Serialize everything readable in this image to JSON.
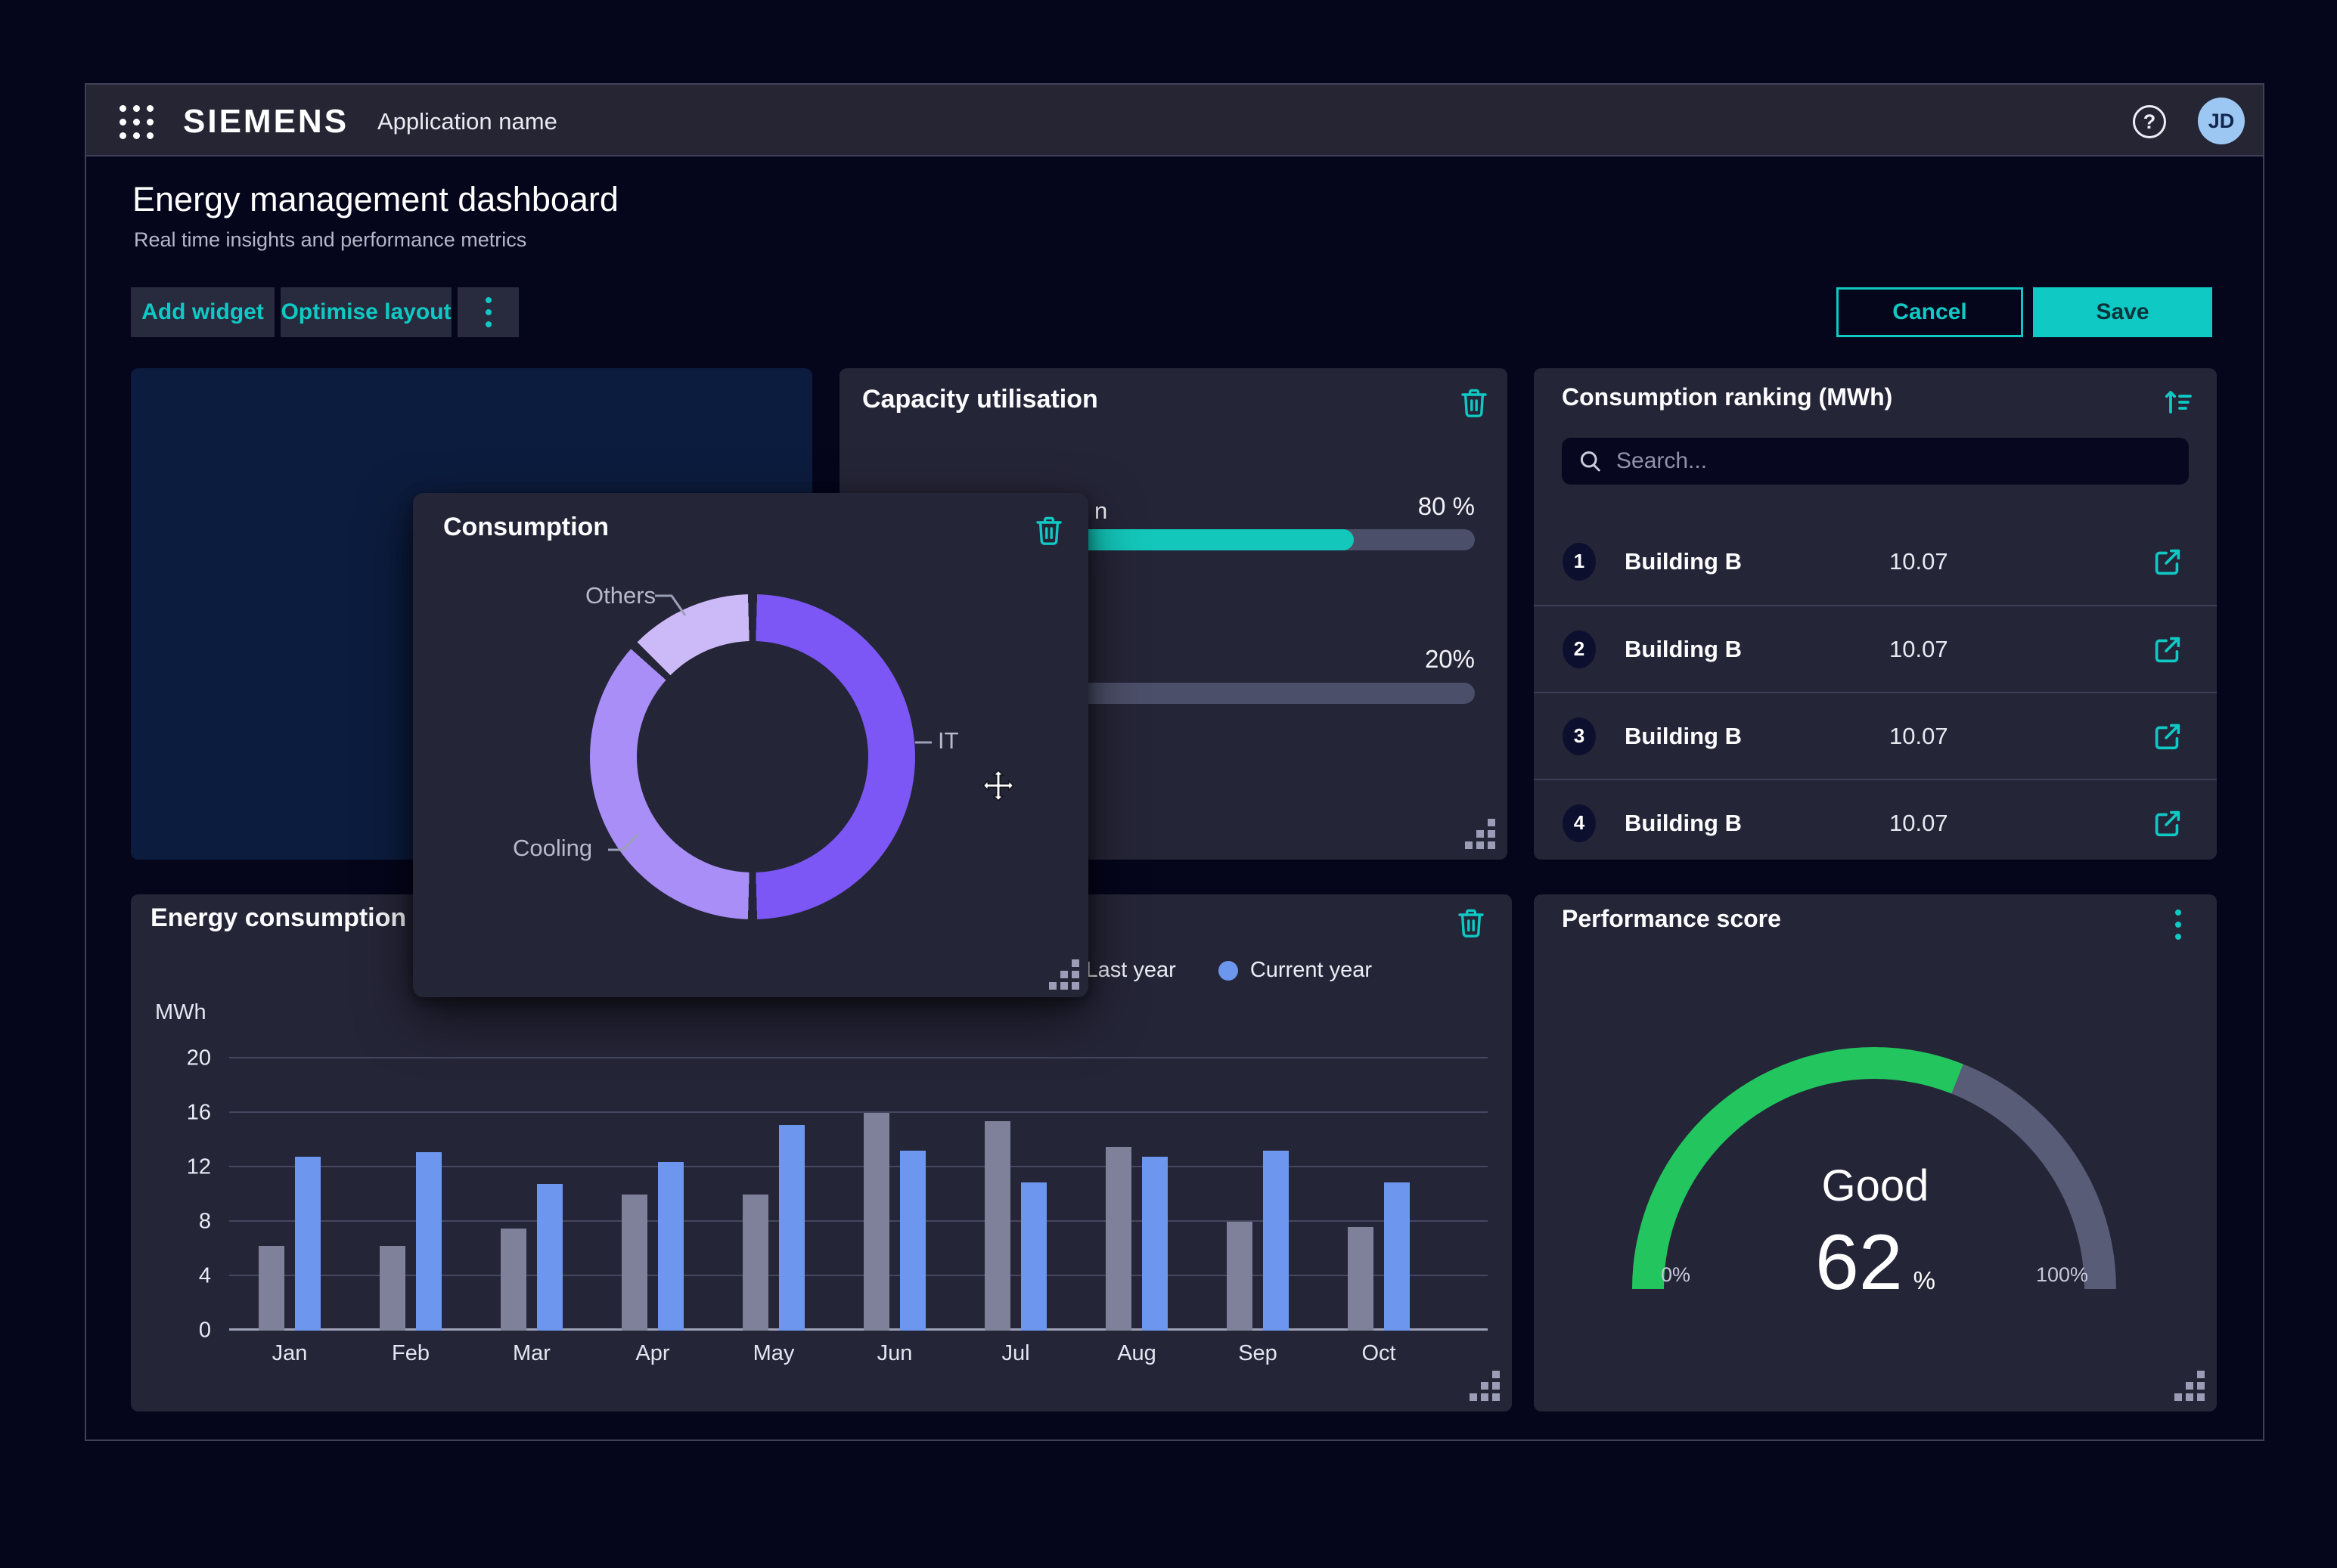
{
  "header": {
    "brand": "SIEMENS",
    "app_name": "Application name",
    "avatar_initials": "JD"
  },
  "page": {
    "title": "Energy management dashboard",
    "subtitle": "Real time insights and performance metrics"
  },
  "toolbar": {
    "add_widget": "Add widget",
    "optimise_layout": "Optimise layout",
    "cancel": "Cancel",
    "save": "Save"
  },
  "colors": {
    "accent": "#0fc9c4",
    "progress_fill": "#13c7ba",
    "progress_track": "#4c4f69",
    "bar_last_year": "#7e8199",
    "bar_current_year": "#6d96ee",
    "gauge_green": "#22c55e",
    "gauge_track": "#585c77",
    "donut_it": "#7c57f5",
    "donut_cooling": "#a88ef6",
    "donut_others": "#ccbaf8",
    "widget_bg": "#252538",
    "placeholder_bg": "#0c1c3e"
  },
  "capacity": {
    "title": "Capacity utilisation",
    "bars": [
      {
        "label_fragment": "n",
        "value_label": "80 %",
        "percent": 80
      },
      {
        "label_fragment": "",
        "value_label": "20%",
        "percent": 20
      }
    ]
  },
  "consumption": {
    "title": "Consumption",
    "labels": {
      "it": "IT",
      "cooling": "Cooling",
      "others": "Others"
    }
  },
  "ranking": {
    "title": "Consumption ranking (MWh)",
    "search_placeholder": "Search...",
    "rows": [
      {
        "rank": "1",
        "name": "Building B",
        "value": "10.07"
      },
      {
        "rank": "2",
        "name": "Building B",
        "value": "10.07"
      },
      {
        "rank": "3",
        "name": "Building B",
        "value": "10.07"
      },
      {
        "rank": "4",
        "name": "Building B",
        "value": "10.07"
      }
    ]
  },
  "energy": {
    "title": "Energy consumption com",
    "unit_label": "MWh",
    "legend": [
      {
        "label": "Last year"
      },
      {
        "label": "Current year"
      }
    ]
  },
  "performance": {
    "title": "Performance score",
    "status": "Good",
    "value": "62",
    "unit": "%",
    "min_label": "0%",
    "max_label": "100%"
  },
  "chart_data": [
    {
      "type": "pie",
      "donut": true,
      "title": "Consumption",
      "labels": [
        "IT",
        "Cooling",
        "Others"
      ],
      "values": [
        50,
        37,
        13
      ],
      "colors": [
        "#7c57f5",
        "#a88ef6",
        "#ccbaf8"
      ],
      "legend_position": "callout-labels"
    },
    {
      "type": "bar",
      "title": "Energy consumption com",
      "ylabel": "MWh",
      "ylim": [
        0,
        20
      ],
      "yticks": [
        0,
        4,
        8,
        12,
        16,
        20
      ],
      "grid": true,
      "legend_position": "top-right",
      "categories": [
        "Jan",
        "Feb",
        "Mar",
        "Apr",
        "May",
        "Jun",
        "Jul",
        "Aug",
        "Sep",
        "Oct"
      ],
      "series": [
        {
          "name": "Last year",
          "color": "#7e8199",
          "values": [
            6.2,
            6.2,
            7.5,
            10,
            10,
            16,
            15.4,
            13.5,
            8,
            7.6
          ]
        },
        {
          "name": "Current year",
          "color": "#6d96ee",
          "values": [
            12.8,
            13.1,
            10.8,
            12.4,
            15.1,
            13.2,
            10.9,
            12.8,
            13.2,
            10.9
          ]
        }
      ]
    },
    {
      "type": "gauge",
      "title": "Performance score",
      "label": "Good",
      "value": 62,
      "range": [
        0,
        100
      ],
      "min_label": "0%",
      "max_label": "100%",
      "color": "#22c55e",
      "track_color": "#585c77"
    },
    {
      "type": "progress",
      "title": "Capacity utilisation",
      "bars": [
        {
          "percent": 80,
          "label": "80 %"
        },
        {
          "percent": 20,
          "label": "20%"
        }
      ]
    }
  ]
}
